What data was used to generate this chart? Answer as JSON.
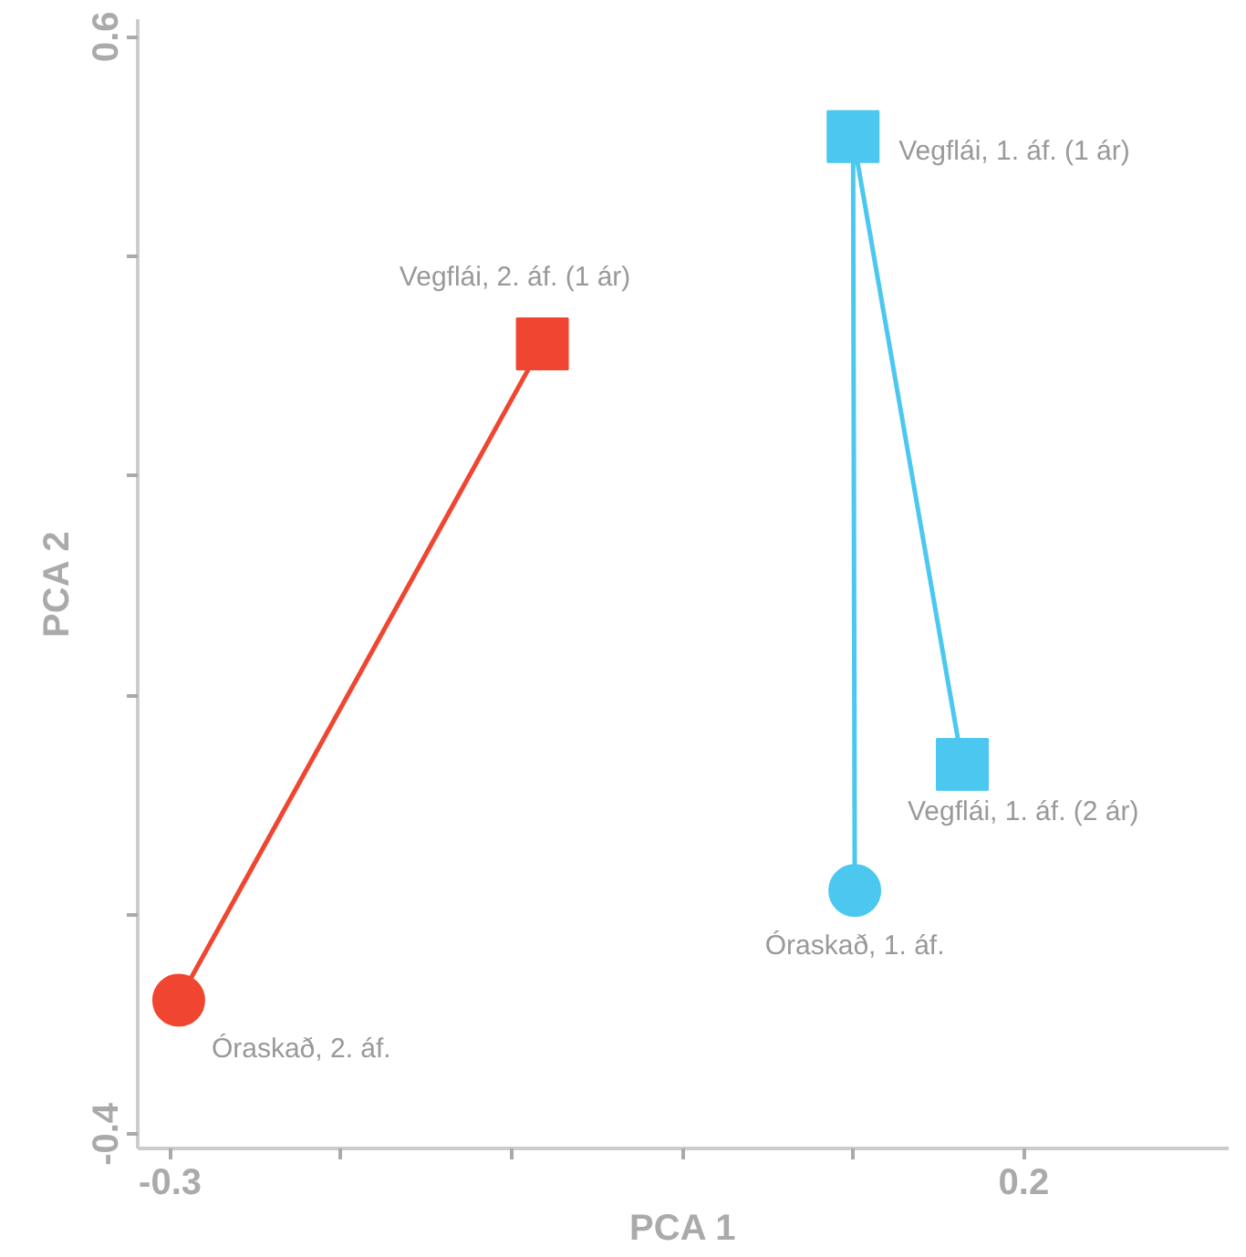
{
  "chart_data": {
    "type": "scatter",
    "xlabel": "PCA 1",
    "ylabel": "PCA 2",
    "xlim": [
      -0.319,
      0.32
    ],
    "ylim": [
      -0.413,
      0.616
    ],
    "xticks": [
      -0.3,
      {
        "value": -0.2,
        "label": null
      },
      {
        "value": -0.1,
        "label": null
      },
      {
        "value": 0.0,
        "label": null
      },
      {
        "value": 0.1,
        "label": null
      },
      0.2
    ],
    "yticks": [
      -0.4,
      {
        "value": -0.2,
        "label": null
      },
      {
        "value": 0.0,
        "label": null
      },
      {
        "value": 0.2,
        "label": null
      },
      {
        "value": 0.4,
        "label": null
      },
      0.6
    ],
    "grid": false,
    "series": [
      {
        "type": "line",
        "marker": "none",
        "color": "#f04530",
        "x": [
          -0.295,
          -0.082
        ],
        "values": [
          -0.278,
          0.32
        ]
      },
      {
        "type": "line",
        "marker": "none",
        "color": "#4cc8f0",
        "x": [
          0.101,
          0.1,
          0.164
        ],
        "values": [
          -0.178,
          0.509,
          -0.063
        ]
      },
      {
        "marker": "circle",
        "colors": [
          "#f04530",
          "#4cc8f0"
        ],
        "x": [
          -0.295,
          0.101
        ],
        "values": [
          -0.278,
          -0.178
        ]
      },
      {
        "marker": "square",
        "colors": [
          "#f04530",
          "#4cc8f0",
          "#4cc8f0"
        ],
        "x": [
          -0.082,
          0.1,
          0.164
        ],
        "values": [
          0.32,
          0.509,
          -0.063
        ]
      }
    ],
    "annotations": [
      {
        "text": "Vegflái, 1. áf. (1 ár)",
        "x": 0.1,
        "y": 0.509
      },
      {
        "text": "Vegflái, 2. áf. (1 ár)",
        "x": -0.082,
        "y": 0.32
      },
      {
        "text": "Vegflái, 1. áf. (2 ár)",
        "x": 0.164,
        "y": -0.063
      },
      {
        "text": "Óraskað, 1. áf.",
        "x": 0.101,
        "y": -0.178
      },
      {
        "text": "Óraskað, 2. áf.",
        "x": -0.295,
        "y": -0.278
      }
    ]
  }
}
